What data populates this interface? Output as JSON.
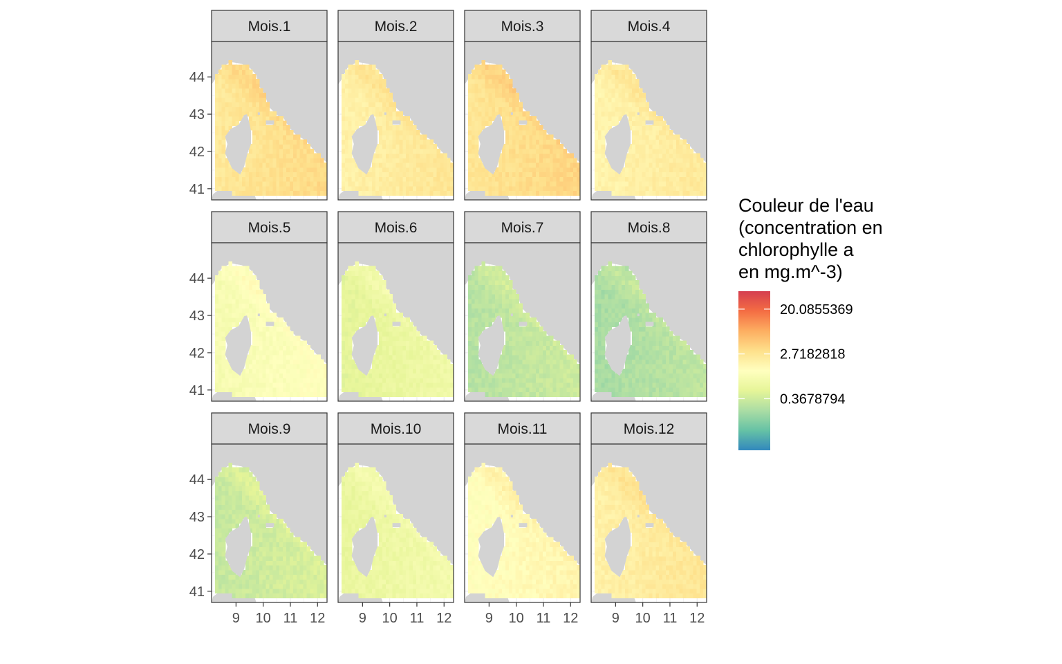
{
  "chart_data": {
    "type": "heatmap",
    "facets": [
      "Mois.1",
      "Mois.2",
      "Mois.3",
      "Mois.4",
      "Mois.5",
      "Mois.6",
      "Mois.7",
      "Mois.8",
      "Mois.9",
      "Mois.10",
      "Mois.11",
      "Mois.12"
    ],
    "facet_ncol": 4,
    "x_ticks": [
      "9",
      "10",
      "11",
      "12"
    ],
    "x_tick_values": [
      9,
      10,
      11,
      12
    ],
    "y_ticks": [
      "41",
      "42",
      "43",
      "44"
    ],
    "y_tick_values": [
      41,
      42,
      43,
      44
    ],
    "xlim": [
      8.1,
      12.35
    ],
    "ylim": [
      40.7,
      44.95
    ],
    "monthly_level": [
      0.78,
      0.72,
      0.8,
      0.7,
      0.55,
      0.42,
      0.25,
      0.2,
      0.3,
      0.45,
      0.62,
      0.72
    ],
    "legend": {
      "title": "Couleur de l'eau\n(concentration en\nchlorophylle a\nen mg.m^-3)",
      "labels": [
        "20.0855369",
        "2.7182818",
        "0.3678794"
      ],
      "label_values": [
        20.0855369,
        2.7182818,
        0.3678794
      ],
      "scale": "log",
      "log_range": [
        -3.3,
        3.8
      ],
      "placement": "right",
      "palette": [
        "#3288bd",
        "#66c2a5",
        "#abdda4",
        "#e6f598",
        "#ffffbf",
        "#fee08b",
        "#fdae61",
        "#f46d43",
        "#d53e4f"
      ]
    },
    "grid": true,
    "panel_background": "#ffffff",
    "land_color": "#d3d3d3",
    "strip_color": "#d9d9d9"
  }
}
